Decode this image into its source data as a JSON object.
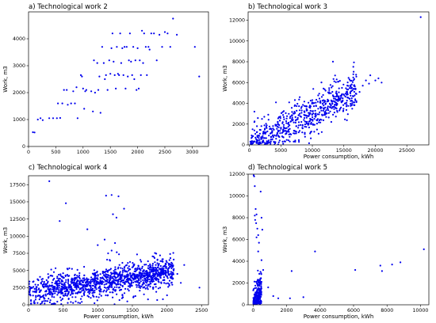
{
  "figure": {
    "marker_color": "#0000ee"
  },
  "chart_data": [
    {
      "type": "scatter",
      "title": "a) Technological work 2",
      "xlabel": "",
      "ylabel": "Work, m3",
      "xlim": [
        0,
        3300
      ],
      "ylim": [
        0,
        5000
      ],
      "xticks": [
        0,
        500,
        1000,
        1500,
        2000,
        2500,
        3000
      ],
      "yticks": [
        0,
        1000,
        2000,
        3000,
        4000
      ],
      "grid": false,
      "legend": "none",
      "points": [
        [
          80,
          530
        ],
        [
          110,
          520
        ],
        [
          170,
          1000
        ],
        [
          220,
          1050
        ],
        [
          260,
          980
        ],
        [
          380,
          1050
        ],
        [
          450,
          1050
        ],
        [
          520,
          1050
        ],
        [
          540,
          1600
        ],
        [
          580,
          1060
        ],
        [
          620,
          1600
        ],
        [
          650,
          2100
        ],
        [
          700,
          2100
        ],
        [
          720,
          1550
        ],
        [
          780,
          1600
        ],
        [
          820,
          2050
        ],
        [
          850,
          1600
        ],
        [
          880,
          2200
        ],
        [
          900,
          1050
        ],
        [
          960,
          2650
        ],
        [
          980,
          2600
        ],
        [
          1000,
          2150
        ],
        [
          1020,
          1400
        ],
        [
          1040,
          2050
        ],
        [
          1060,
          2100
        ],
        [
          1150,
          2050
        ],
        [
          1180,
          1300
        ],
        [
          1200,
          3200
        ],
        [
          1220,
          2000
        ],
        [
          1260,
          3100
        ],
        [
          1280,
          2100
        ],
        [
          1300,
          2600
        ],
        [
          1320,
          1250
        ],
        [
          1350,
          3700
        ],
        [
          1380,
          3100
        ],
        [
          1400,
          2500
        ],
        [
          1420,
          2650
        ],
        [
          1450,
          2100
        ],
        [
          1480,
          3200
        ],
        [
          1500,
          2700
        ],
        [
          1520,
          3650
        ],
        [
          1540,
          4200
        ],
        [
          1560,
          3150
        ],
        [
          1580,
          2650
        ],
        [
          1600,
          2150
        ],
        [
          1620,
          3700
        ],
        [
          1640,
          2700
        ],
        [
          1660,
          2650
        ],
        [
          1680,
          4200
        ],
        [
          1700,
          3100
        ],
        [
          1720,
          3650
        ],
        [
          1740,
          2650
        ],
        [
          1760,
          3700
        ],
        [
          1780,
          2150
        ],
        [
          1800,
          3700
        ],
        [
          1820,
          2600
        ],
        [
          1840,
          3200
        ],
        [
          1860,
          4200
        ],
        [
          1880,
          3150
        ],
        [
          1900,
          2650
        ],
        [
          1920,
          3700
        ],
        [
          1940,
          2500
        ],
        [
          1960,
          3200
        ],
        [
          1980,
          2100
        ],
        [
          2000,
          3650
        ],
        [
          2020,
          2150
        ],
        [
          2040,
          3200
        ],
        [
          2060,
          2650
        ],
        [
          2080,
          4300
        ],
        [
          2100,
          3100
        ],
        [
          2120,
          4200
        ],
        [
          2150,
          3700
        ],
        [
          2170,
          2650
        ],
        [
          2200,
          3700
        ],
        [
          2220,
          3600
        ],
        [
          2250,
          4200
        ],
        [
          2300,
          4200
        ],
        [
          2350,
          3200
        ],
        [
          2400,
          4150
        ],
        [
          2450,
          3700
        ],
        [
          2500,
          4250
        ],
        [
          2550,
          4200
        ],
        [
          2600,
          3700
        ],
        [
          2650,
          4750
        ],
        [
          2720,
          4150
        ],
        [
          3050,
          3700
        ],
        [
          3130,
          2600
        ]
      ]
    },
    {
      "type": "scatter",
      "title": "b) Technological work 3",
      "xlabel": "Power consumption,  kWh",
      "ylabel": "Work, m3",
      "xlim": [
        -200,
        28500
      ],
      "ylim": [
        0,
        12800
      ],
      "xticks": [
        0,
        5000,
        10000,
        15000,
        20000,
        25000
      ],
      "yticks": [
        0,
        2000,
        4000,
        6000,
        8000,
        10000,
        12000
      ],
      "grid": false,
      "legend": "none",
      "cluster": {
        "count": 650,
        "x_range": [
          0,
          17000
        ],
        "trend_y": [
          0,
          5200
        ],
        "spread": 1300
      },
      "points": [
        [
          300,
          300
        ],
        [
          500,
          1500
        ],
        [
          800,
          2200
        ],
        [
          1200,
          1800
        ],
        [
          1500,
          900
        ],
        [
          2000,
          2500
        ],
        [
          2500,
          1200
        ],
        [
          3000,
          2900
        ],
        [
          800,
          3200
        ],
        [
          18000,
          5700
        ],
        [
          18500,
          6200
        ],
        [
          19000,
          5900
        ],
        [
          20000,
          6200
        ],
        [
          20500,
          6400
        ],
        [
          21000,
          6000
        ],
        [
          16500,
          6800
        ],
        [
          17000,
          4200
        ],
        [
          17500,
          5100
        ],
        [
          19200,
          6700
        ],
        [
          27200,
          12300
        ]
      ]
    },
    {
      "type": "scatter",
      "title": "c) Technological work 4",
      "xlabel": "Power consumption,  kWh",
      "ylabel": "Work, m3",
      "xlim": [
        0,
        2600
      ],
      "ylim": [
        0,
        18800
      ],
      "xticks": [
        0,
        500,
        1000,
        1500,
        2000,
        2500
      ],
      "yticks": [
        0,
        2500,
        5000,
        7500,
        10000,
        12500,
        15000,
        17500
      ],
      "grid": false,
      "legend": "none",
      "cluster": {
        "count": 1300,
        "x_range": [
          0,
          2100
        ],
        "trend_y": [
          1800,
          4800
        ],
        "spread": 1500
      },
      "points": [
        [
          300,
          18000
        ],
        [
          450,
          12200
        ],
        [
          540,
          14800
        ],
        [
          850,
          11000
        ],
        [
          1120,
          15900
        ],
        [
          1200,
          16000
        ],
        [
          1220,
          13200
        ],
        [
          1270,
          12700
        ],
        [
          1300,
          15800
        ],
        [
          1100,
          9500
        ],
        [
          1150,
          7500
        ],
        [
          1380,
          14000
        ],
        [
          1250,
          9000
        ],
        [
          1000,
          8700
        ],
        [
          1200,
          7900
        ],
        [
          2050,
          6800
        ],
        [
          2100,
          5200
        ],
        [
          2150,
          4500
        ],
        [
          2200,
          3200
        ],
        [
          2250,
          5800
        ],
        [
          2470,
          2500
        ],
        [
          1900,
          7200
        ]
      ]
    },
    {
      "type": "scatter",
      "title": "d) Technological work 5",
      "xlabel": "Power consumption,  kWh",
      "ylabel": "Work, m3",
      "xlim": [
        -300,
        10500
      ],
      "ylim": [
        0,
        12000
      ],
      "xticks": [
        0,
        2000,
        4000,
        6000,
        8000,
        10000
      ],
      "yticks": [
        0,
        2000,
        4000,
        6000,
        8000,
        10000,
        12000
      ],
      "grid": false,
      "legend": "none",
      "cluster": {
        "count": 230,
        "x_range": [
          0,
          500
        ],
        "trend_y": [
          0,
          1500
        ],
        "spread": 1200
      },
      "points": [
        [
          30,
          11900
        ],
        [
          60,
          11800
        ],
        [
          100,
          10900
        ],
        [
          150,
          8800
        ],
        [
          200,
          8300
        ],
        [
          100,
          8200
        ],
        [
          120,
          7800
        ],
        [
          180,
          7500
        ],
        [
          250,
          7000
        ],
        [
          300,
          6400
        ],
        [
          350,
          5700
        ],
        [
          450,
          10400
        ],
        [
          500,
          8000
        ],
        [
          550,
          6900
        ],
        [
          200,
          6200
        ],
        [
          300,
          4900
        ],
        [
          500,
          4100
        ],
        [
          600,
          3200
        ],
        [
          900,
          1600
        ],
        [
          1200,
          800
        ],
        [
          1500,
          600
        ],
        [
          2200,
          600
        ],
        [
          2300,
          3100
        ],
        [
          3000,
          700
        ],
        [
          3700,
          4900
        ],
        [
          6100,
          3200
        ],
        [
          7600,
          3600
        ],
        [
          7700,
          3100
        ],
        [
          8300,
          3700
        ],
        [
          8800,
          3900
        ],
        [
          10200,
          5100
        ]
      ]
    }
  ]
}
